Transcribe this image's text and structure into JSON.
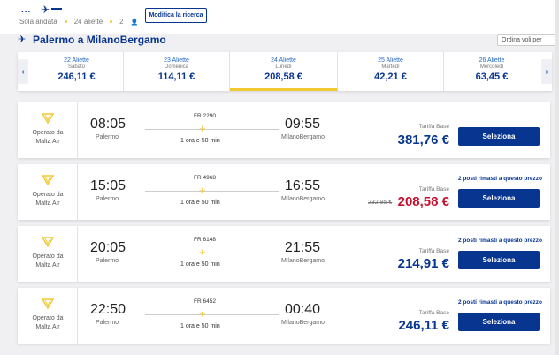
{
  "header": {
    "trip_type": "Sola andata",
    "date": "24 aliette",
    "passengers": "2",
    "modify_label": "Modifica la ricerca"
  },
  "route": {
    "title": "Palermo a MilanoBergamo",
    "sort_label": "Ordina voli per"
  },
  "dates": [
    {
      "date": "22 Aliette",
      "weekday": "Sabato",
      "price": "246,11 €"
    },
    {
      "date": "23 Aliette",
      "weekday": "Domenica",
      "price": "114,11 €"
    },
    {
      "date": "24 Aliette",
      "weekday": "Lunedì",
      "price": "208,58 €"
    },
    {
      "date": "25 Aliette",
      "weekday": "Martedì",
      "price": "42,21 €"
    },
    {
      "date": "26 Aliette",
      "weekday": "Mercoledì",
      "price": "63,45 €"
    }
  ],
  "flights": [
    {
      "operator": "Operato da",
      "operator_name": "Malta Air",
      "dep_time": "08:05",
      "dep_city": "Palermo",
      "flight_no": "FR 2290",
      "duration": "1 ora e 50 min",
      "arr_time": "09:55",
      "arr_city": "MilanoBergamo",
      "fare_label": "Tariffa Base",
      "price": "381,76 €",
      "select_label": "Seleziona"
    },
    {
      "operator": "Operato da",
      "operator_name": "Malta Air",
      "dep_time": "15:05",
      "dep_city": "Palermo",
      "flight_no": "FR 4968",
      "duration": "1 ora e 50 min",
      "arr_time": "16:55",
      "arr_city": "MilanoBergamo",
      "fare_label": "Tariffa Base",
      "old_price": "232,95 €",
      "price": "208,58 €",
      "seats": "2 posti rimasti a questo prezzo",
      "select_label": "Seleziona"
    },
    {
      "operator": "Operato da",
      "operator_name": "Malta Air",
      "dep_time": "20:05",
      "dep_city": "Palermo",
      "flight_no": "FR 6148",
      "duration": "1 ora e 50 min",
      "arr_time": "21:55",
      "arr_city": "MilanoBergamo",
      "fare_label": "Tariffa Base",
      "price": "214,91 €",
      "seats": "2 posti rimasti a questo prezzo",
      "select_label": "Seleziona"
    },
    {
      "operator": "Operato da",
      "operator_name": "Malta Air",
      "dep_time": "22:50",
      "dep_city": "Palermo",
      "flight_no": "FR 6452",
      "duration": "1 ora e 50 min",
      "arr_time": "00:40",
      "arr_city": "MilanoBergamo",
      "fare_label": "Tariffa Base",
      "price": "246,11 €",
      "seats": "2 posti rimasti a questo prezzo",
      "select_label": "Seleziona"
    }
  ],
  "colors": {
    "brand": "#073590",
    "accent": "#f1c933",
    "promo": "#c8102e"
  }
}
